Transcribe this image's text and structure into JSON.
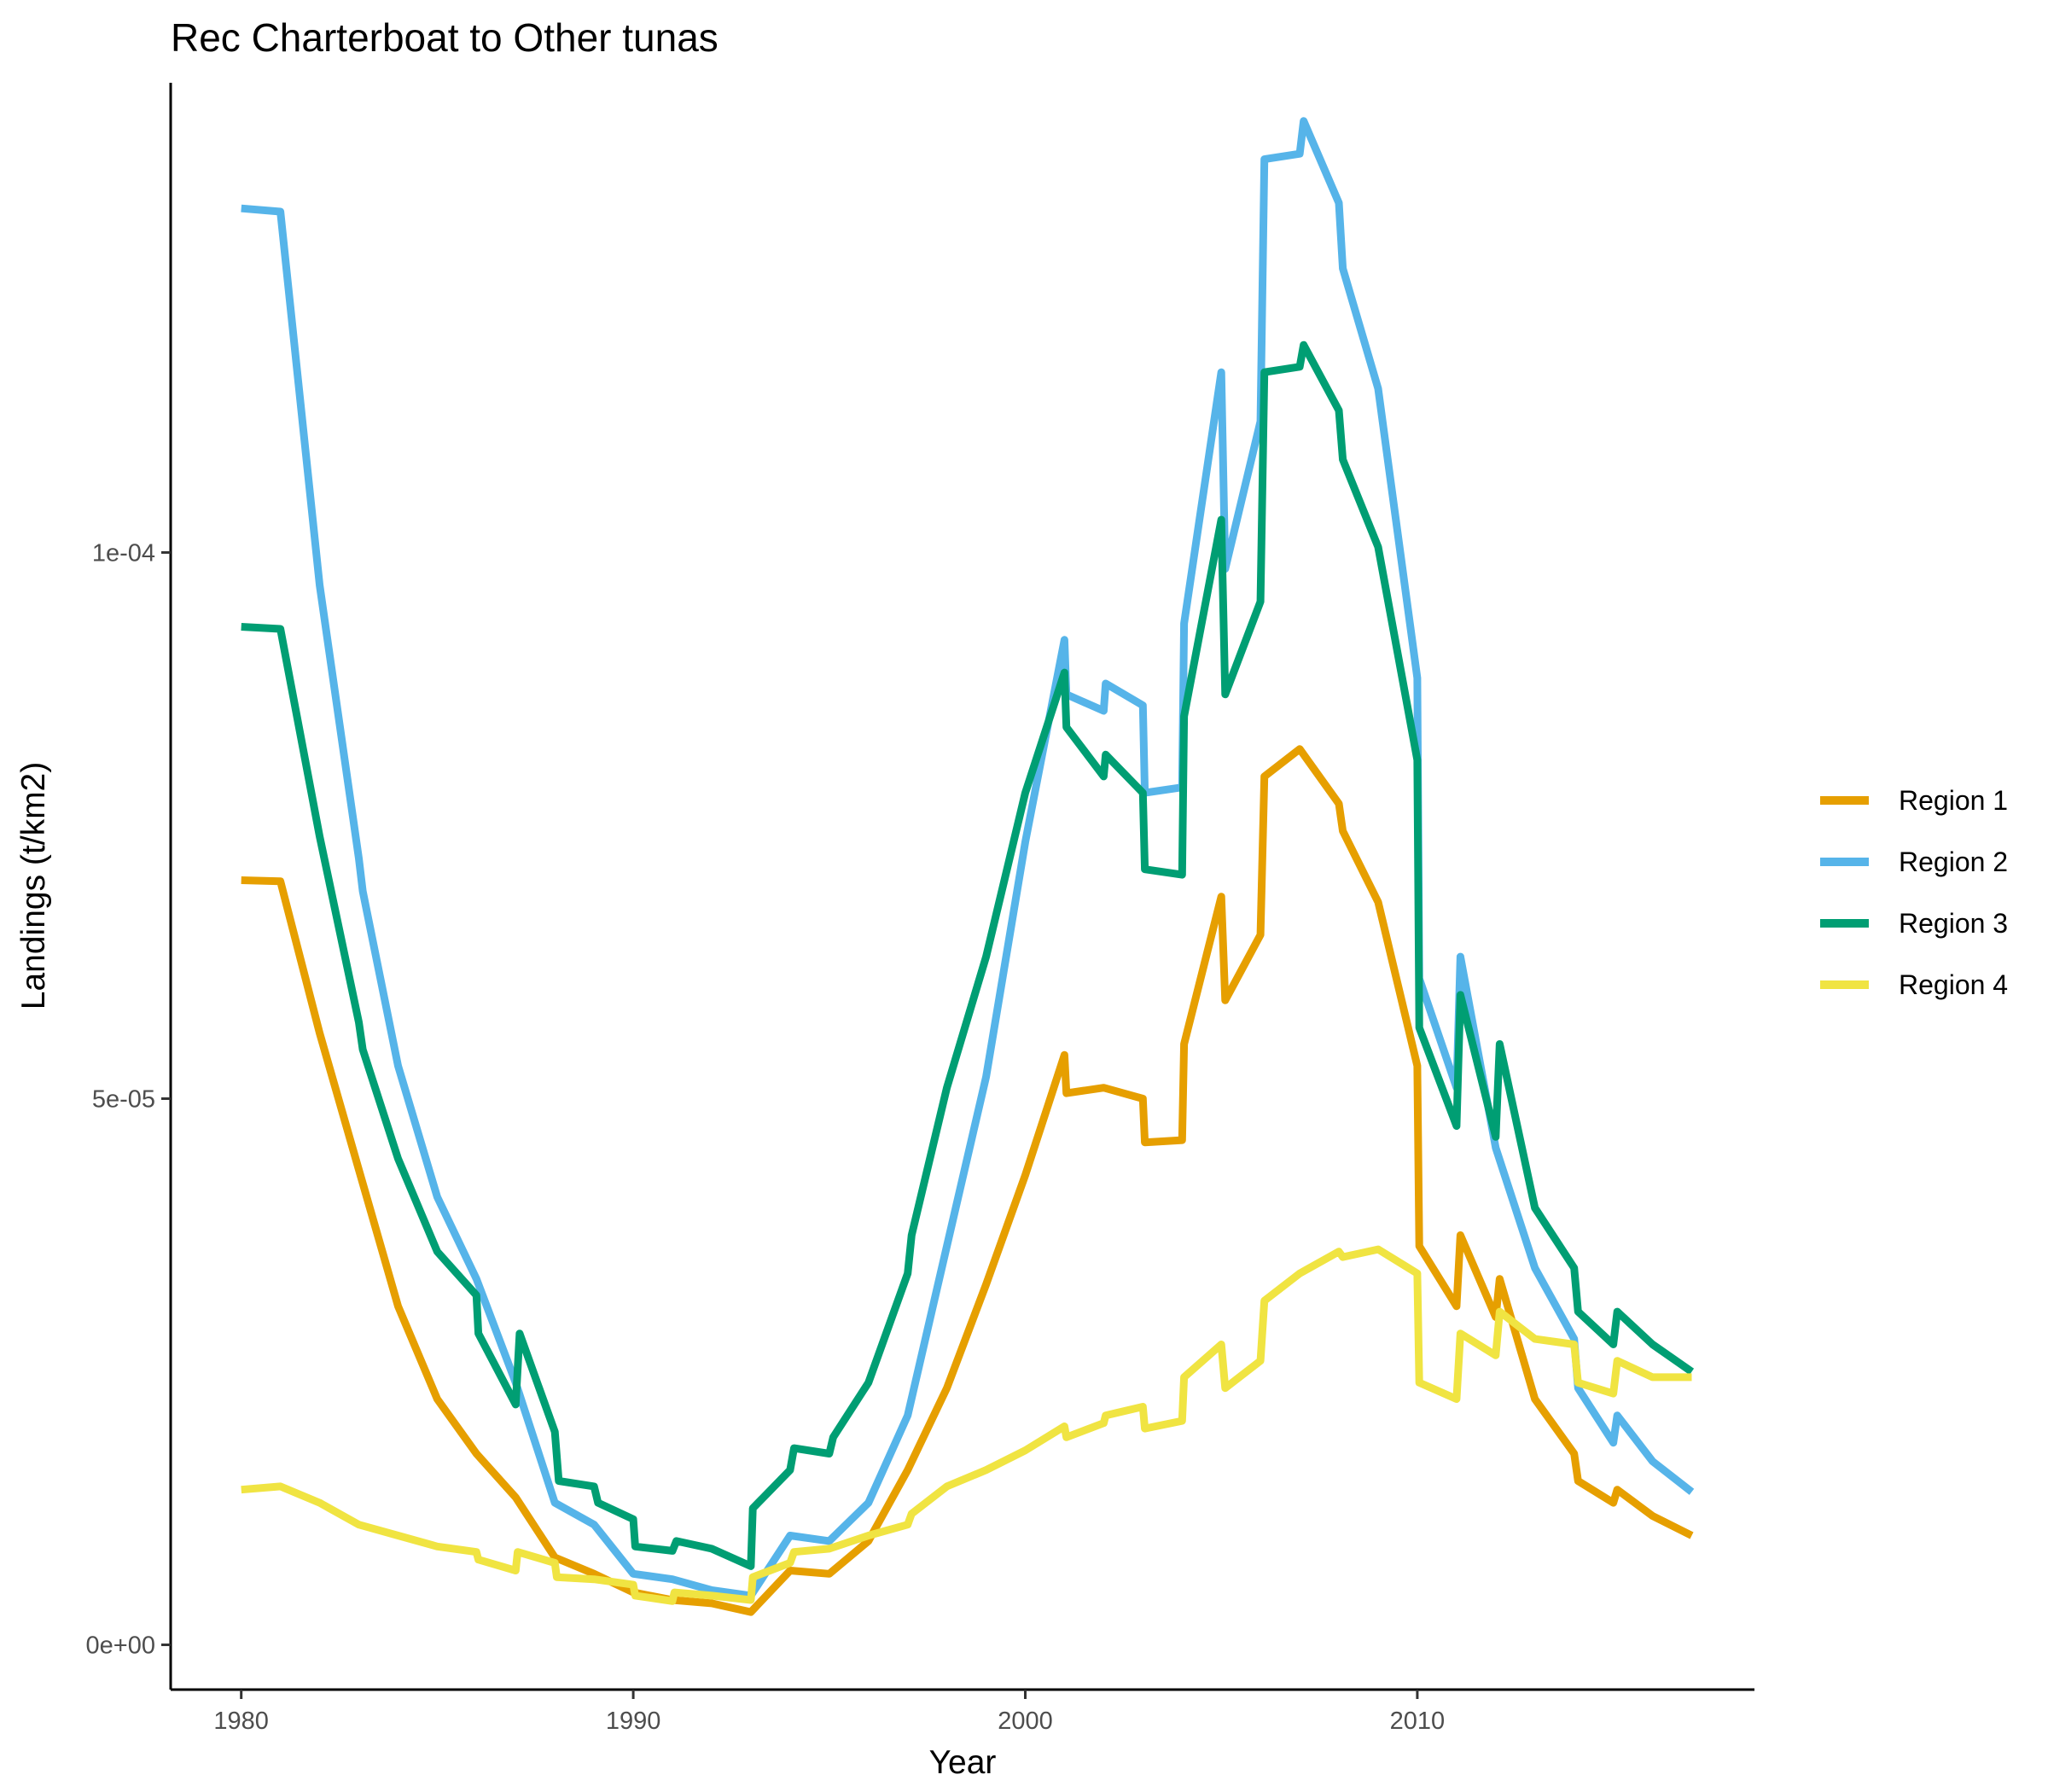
{
  "chart_data": {
    "type": "line",
    "title": "Rec Charterboat to Other tunas",
    "xlabel": "Year",
    "ylabel": "Landings (t/km2)",
    "xlim": [
      1978.2,
      2018.6
    ],
    "ylim": [
      -4.1e-06,
      0.000143
    ],
    "x_ticks": [
      1980,
      1990,
      2000,
      2010
    ],
    "x_tick_labels": [
      "1980",
      "1990",
      "2000",
      "2010"
    ],
    "y_ticks": [
      0,
      5e-05,
      0.0001
    ],
    "y_tick_labels": [
      "0e+00",
      "5e-05",
      "1e-04"
    ],
    "grid": false,
    "legend_position": "right",
    "series": [
      {
        "name": "Region 1",
        "color": "#E69F00",
        "points": [
          [
            1980,
            7e-05
          ],
          [
            1981,
            6.99e-05
          ],
          [
            1982,
            5.6e-05
          ],
          [
            1983,
            4.35e-05
          ],
          [
            1984,
            3.1e-05
          ],
          [
            1985,
            2.25e-05
          ],
          [
            1986,
            1.75e-05
          ],
          [
            1987,
            1.35e-05
          ],
          [
            1988,
            8e-06
          ],
          [
            1989,
            6.5e-06
          ],
          [
            1990,
            4.8e-06
          ],
          [
            1991,
            4.1e-06
          ],
          [
            1992,
            3.8e-06
          ],
          [
            1993,
            3e-06
          ],
          [
            1994,
            6.8e-06
          ],
          [
            1995,
            6.5e-06
          ],
          [
            1996,
            9.5e-06
          ],
          [
            1997,
            1.6e-05
          ],
          [
            1998,
            2.35e-05
          ],
          [
            1999,
            3.3e-05
          ],
          [
            2000,
            4.3e-05
          ],
          [
            2001,
            5.4e-05
          ],
          [
            2001.05,
            5.05e-05
          ],
          [
            2002,
            5.1e-05
          ],
          [
            2003,
            5e-05
          ],
          [
            2003.05,
            4.6e-05
          ],
          [
            2004,
            4.62e-05
          ],
          [
            2004.05,
            5.5e-05
          ],
          [
            2005,
            6.85e-05
          ],
          [
            2005.1,
            5.9e-05
          ],
          [
            2006,
            6.5e-05
          ],
          [
            2006.1,
            7.95e-05
          ],
          [
            2007,
            8.2e-05
          ],
          [
            2008,
            7.7e-05
          ],
          [
            2008.1,
            7.45e-05
          ],
          [
            2009,
            6.8e-05
          ],
          [
            2010,
            5.3e-05
          ],
          [
            2010.05,
            3.65e-05
          ],
          [
            2011,
            3.1e-05
          ],
          [
            2011.1,
            3.75e-05
          ],
          [
            2012,
            3e-05
          ],
          [
            2012.1,
            3.35e-05
          ],
          [
            2013,
            2.25e-05
          ],
          [
            2014,
            1.75e-05
          ],
          [
            2014.1,
            1.5e-05
          ],
          [
            2015,
            1.3e-05
          ],
          [
            2015.1,
            1.42e-05
          ],
          [
            2016,
            1.18e-05
          ],
          [
            2017,
            1e-05
          ]
        ]
      },
      {
        "name": "Region 2",
        "color": "#56B4E9",
        "points": [
          [
            1980,
            0.0001315
          ],
          [
            1981,
            0.0001312
          ],
          [
            1982,
            9.7e-05
          ],
          [
            1983,
            7.2e-05
          ],
          [
            1983.1,
            6.9e-05
          ],
          [
            1984,
            5.3e-05
          ],
          [
            1985,
            4.1e-05
          ],
          [
            1986,
            3.35e-05
          ],
          [
            1987,
            2.4e-05
          ],
          [
            1988,
            1.3e-05
          ],
          [
            1989,
            1.1e-05
          ],
          [
            1990,
            6.5e-06
          ],
          [
            1991,
            6e-06
          ],
          [
            1992,
            5e-06
          ],
          [
            1993,
            4.5e-06
          ],
          [
            1994,
            1e-05
          ],
          [
            1995,
            9.5e-06
          ],
          [
            1996,
            1.3e-05
          ],
          [
            1997,
            2.1e-05
          ],
          [
            1998,
            3.65e-05
          ],
          [
            1999,
            5.2e-05
          ],
          [
            2000,
            7.35e-05
          ],
          [
            2001,
            9.2e-05
          ],
          [
            2001.05,
            8.7e-05
          ],
          [
            2002,
            8.55e-05
          ],
          [
            2002.05,
            8.8e-05
          ],
          [
            2003,
            8.6e-05
          ],
          [
            2003.05,
            7.8e-05
          ],
          [
            2004,
            7.85e-05
          ],
          [
            2004.05,
            9.35e-05
          ],
          [
            2005,
            0.0001165
          ],
          [
            2005.1,
            9.85e-05
          ],
          [
            2006,
            0.000112
          ],
          [
            2006.1,
            0.000136
          ],
          [
            2007,
            0.0001365
          ],
          [
            2007.1,
            0.0001395
          ],
          [
            2008,
            0.000132
          ],
          [
            2008.1,
            0.000126
          ],
          [
            2009,
            0.000115
          ],
          [
            2010,
            8.85e-05
          ],
          [
            2010.05,
            6.1e-05
          ],
          [
            2011,
            5.1e-05
          ],
          [
            2011.1,
            6.3e-05
          ],
          [
            2012,
            4.55e-05
          ],
          [
            2013,
            3.45e-05
          ],
          [
            2014,
            2.8e-05
          ],
          [
            2014.1,
            2.35e-05
          ],
          [
            2015,
            1.85e-05
          ],
          [
            2015.1,
            2.1e-05
          ],
          [
            2016,
            1.68e-05
          ],
          [
            2017,
            1.4e-05
          ]
        ]
      },
      {
        "name": "Region 3",
        "color": "#009E73",
        "points": [
          [
            1980,
            9.32e-05
          ],
          [
            1981,
            9.3e-05
          ],
          [
            1982,
            7.4e-05
          ],
          [
            1983,
            5.7e-05
          ],
          [
            1983.1,
            5.45e-05
          ],
          [
            1984,
            4.45e-05
          ],
          [
            1985,
            3.6e-05
          ],
          [
            1986,
            3.2e-05
          ],
          [
            1986.05,
            2.85e-05
          ],
          [
            1987,
            2.2e-05
          ],
          [
            1987.1,
            2.85e-05
          ],
          [
            1988,
            1.95e-05
          ],
          [
            1988.1,
            1.5e-05
          ],
          [
            1989,
            1.45e-05
          ],
          [
            1989.1,
            1.3e-05
          ],
          [
            1990,
            1.15e-05
          ],
          [
            1990.05,
            9e-06
          ],
          [
            1991,
            8.6e-06
          ],
          [
            1991.1,
            9.5e-06
          ],
          [
            1992,
            8.8e-06
          ],
          [
            1993,
            7.2e-06
          ],
          [
            1993.05,
            1.25e-05
          ],
          [
            1994,
            1.6e-05
          ],
          [
            1994.1,
            1.8e-05
          ],
          [
            1995,
            1.75e-05
          ],
          [
            1995.1,
            1.9e-05
          ],
          [
            1996,
            2.4e-05
          ],
          [
            1997,
            3.4e-05
          ],
          [
            1997.1,
            3.75e-05
          ],
          [
            1998,
            5.1e-05
          ],
          [
            1999,
            6.3e-05
          ],
          [
            2000,
            7.8e-05
          ],
          [
            2001,
            8.9e-05
          ],
          [
            2001.05,
            8.4e-05
          ],
          [
            2002,
            7.95e-05
          ],
          [
            2002.05,
            8.15e-05
          ],
          [
            2003,
            7.8e-05
          ],
          [
            2003.05,
            7.1e-05
          ],
          [
            2004,
            7.05e-05
          ],
          [
            2004.05,
            8.5e-05
          ],
          [
            2005,
            0.000103
          ],
          [
            2005.1,
            8.7e-05
          ],
          [
            2006,
            9.55e-05
          ],
          [
            2006.1,
            0.0001165
          ],
          [
            2007,
            0.000117
          ],
          [
            2007.1,
            0.000119
          ],
          [
            2008,
            0.000113
          ],
          [
            2008.1,
            0.0001085
          ],
          [
            2009,
            0.0001005
          ],
          [
            2010,
            8.1e-05
          ],
          [
            2010.05,
            5.65e-05
          ],
          [
            2011,
            4.75e-05
          ],
          [
            2011.1,
            5.95e-05
          ],
          [
            2012,
            4.65e-05
          ],
          [
            2012.1,
            5.5e-05
          ],
          [
            2013,
            4e-05
          ],
          [
            2014,
            3.45e-05
          ],
          [
            2014.1,
            3.05e-05
          ],
          [
            2015,
            2.75e-05
          ],
          [
            2015.1,
            3.05e-05
          ],
          [
            2016,
            2.75e-05
          ],
          [
            2017,
            2.5e-05
          ]
        ]
      },
      {
        "name": "Region 4",
        "color": "#F0E442",
        "points": [
          [
            1980,
            1.42e-05
          ],
          [
            1981,
            1.45e-05
          ],
          [
            1982,
            1.3e-05
          ],
          [
            1983,
            1.1e-05
          ],
          [
            1984,
            1e-05
          ],
          [
            1985,
            9e-06
          ],
          [
            1986,
            8.5e-06
          ],
          [
            1986.05,
            7.8e-06
          ],
          [
            1987,
            6.8e-06
          ],
          [
            1987.05,
            8.5e-06
          ],
          [
            1988,
            7.5e-06
          ],
          [
            1988.05,
            6.2e-06
          ],
          [
            1989,
            6e-06
          ],
          [
            1990,
            5.5e-06
          ],
          [
            1990.05,
            4.5e-06
          ],
          [
            1991,
            4e-06
          ],
          [
            1991.05,
            4.8e-06
          ],
          [
            1992,
            4.5e-06
          ],
          [
            1993,
            4.1e-06
          ],
          [
            1993.05,
            6.2e-06
          ],
          [
            1994,
            7.5e-06
          ],
          [
            1994.1,
            8.5e-06
          ],
          [
            1995,
            8.8e-06
          ],
          [
            1996,
            1e-05
          ],
          [
            1997,
            1.1e-05
          ],
          [
            1997.1,
            1.2e-05
          ],
          [
            1998,
            1.45e-05
          ],
          [
            1999,
            1.6e-05
          ],
          [
            2000,
            1.78e-05
          ],
          [
            2001,
            2e-05
          ],
          [
            2001.05,
            1.9e-05
          ],
          [
            2002,
            2.03e-05
          ],
          [
            2002.05,
            2.1e-05
          ],
          [
            2003,
            2.18e-05
          ],
          [
            2003.05,
            1.98e-05
          ],
          [
            2004,
            2.05e-05
          ],
          [
            2004.05,
            2.45e-05
          ],
          [
            2005,
            2.75e-05
          ],
          [
            2005.1,
            2.35e-05
          ],
          [
            2006,
            2.6e-05
          ],
          [
            2006.1,
            3.15e-05
          ],
          [
            2007,
            3.4e-05
          ],
          [
            2008,
            3.6e-05
          ],
          [
            2008.1,
            3.55e-05
          ],
          [
            2009,
            3.62e-05
          ],
          [
            2010,
            3.4e-05
          ],
          [
            2010.05,
            2.4e-05
          ],
          [
            2011,
            2.25e-05
          ],
          [
            2011.1,
            2.85e-05
          ],
          [
            2012,
            2.65e-05
          ],
          [
            2012.1,
            3.05e-05
          ],
          [
            2013,
            2.8e-05
          ],
          [
            2014,
            2.75e-05
          ],
          [
            2014.1,
            2.4e-05
          ],
          [
            2015,
            2.3e-05
          ],
          [
            2015.1,
            2.6e-05
          ],
          [
            2016,
            2.45e-05
          ],
          [
            2017,
            2.45e-05
          ]
        ]
      }
    ]
  }
}
